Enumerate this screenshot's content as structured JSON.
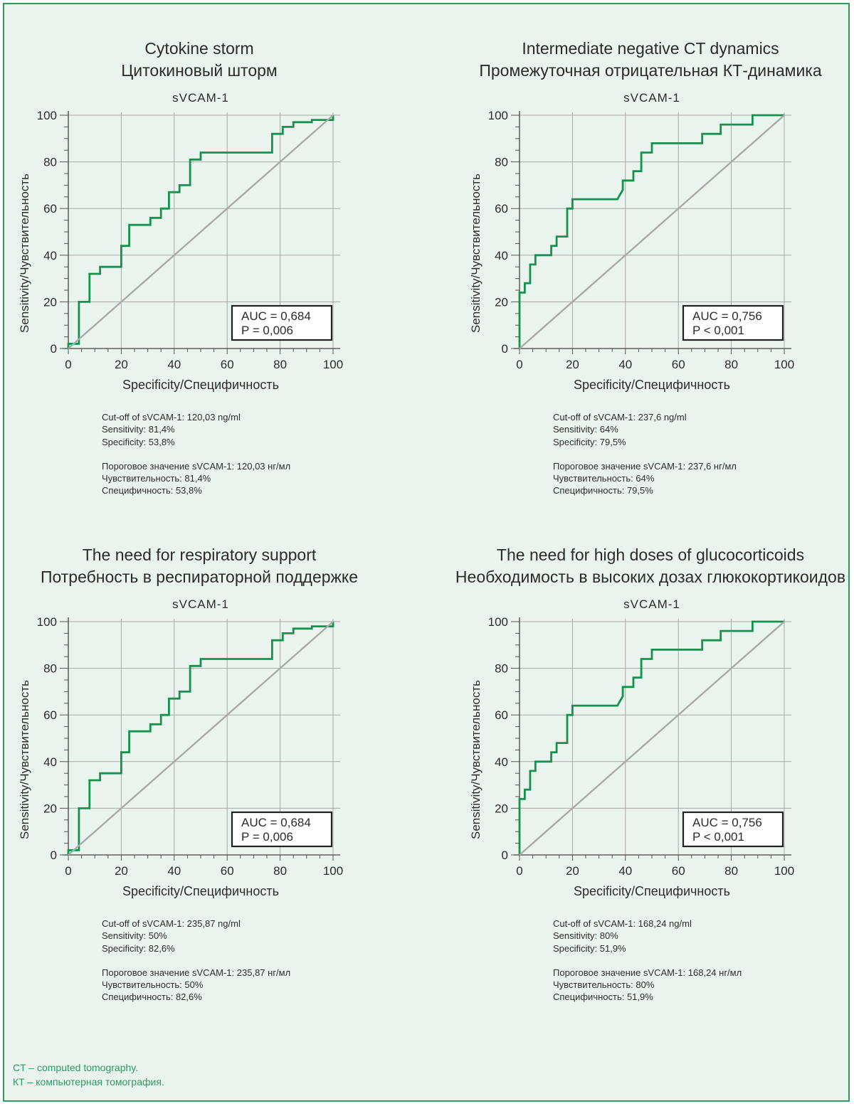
{
  "footnotes": [
    "CT – computed tomography.",
    "КТ – компьютерная томография."
  ],
  "colors": {
    "roc": "#17914f",
    "diagonal": "#a9a9a9",
    "grid": "#a8a8a8",
    "frame": "#2e9a5e",
    "background": "#eaf4ee"
  },
  "chart_data": [
    {
      "type": "line",
      "title_en": "Cytokine storm",
      "title_ru": "Цитокиновый шторм",
      "subtitle": "sVCAM-1",
      "xlabel": "Specificity/Специфичность",
      "ylabel": "Sensitivity/Чувствительность",
      "xlim": [
        0,
        100
      ],
      "ylim": [
        0,
        100
      ],
      "xticks": [
        0,
        20,
        40,
        60,
        80,
        100
      ],
      "yticks": [
        0,
        20,
        40,
        60,
        80,
        100
      ],
      "grid": true,
      "legend_box": [
        "AUC = 0,684",
        "P = 0,006"
      ],
      "legend_position": "bottom-right",
      "series": [
        {
          "role": "roc",
          "x": [
            0,
            0,
            4,
            4,
            4,
            8,
            8,
            12,
            12,
            20,
            20,
            23,
            23,
            31,
            31,
            35,
            35,
            38,
            38,
            42,
            42,
            46,
            46,
            50,
            50,
            77,
            77,
            81,
            81,
            85,
            85,
            92,
            92,
            100,
            100
          ],
          "y": [
            0,
            2,
            2,
            11,
            20,
            20,
            32,
            32,
            35,
            35,
            44,
            44,
            53,
            53,
            56,
            56,
            60,
            60,
            67,
            67,
            70,
            70,
            81,
            81,
            84,
            84,
            92,
            92,
            95,
            95,
            97,
            97,
            98,
            98,
            100
          ]
        },
        {
          "role": "reference",
          "x": [
            0,
            100
          ],
          "y": [
            0,
            100
          ]
        }
      ],
      "notes_en": [
        "Cut-off of sVCAM-1: 120,03 ng/ml",
        "Sensitivity: 81,4%",
        "Specificity: 53,8%"
      ],
      "notes_ru": [
        "Пороговое значение sVCAM-1: 120,03 нг/мл",
        "Чувствительность: 81,4%",
        "Специфичность: 53,8%"
      ]
    },
    {
      "type": "line",
      "title_en": "Intermediate negative CT dynamics",
      "title_ru": "Промежуточная отрицательная КТ-динамика",
      "subtitle": "sVCAM-1",
      "xlabel": "Specificity/Специфичность",
      "ylabel": "Sensitivity/Чувствительность",
      "xlim": [
        0,
        100
      ],
      "ylim": [
        0,
        100
      ],
      "xticks": [
        0,
        20,
        40,
        60,
        80,
        100
      ],
      "yticks": [
        0,
        20,
        40,
        60,
        80,
        100
      ],
      "grid": true,
      "legend_box": [
        "AUC = 0,756",
        "P < 0,001"
      ],
      "legend_position": "bottom-right",
      "series": [
        {
          "role": "roc",
          "x": [
            0,
            0,
            2,
            2,
            4,
            4,
            6,
            6,
            8,
            8,
            12,
            12,
            14,
            14,
            18,
            18,
            20,
            20,
            37,
            39,
            39,
            43,
            43,
            46,
            46,
            50,
            50,
            69,
            69,
            76,
            76,
            88,
            88,
            100
          ],
          "y": [
            0,
            24,
            24,
            28,
            28,
            36,
            36,
            40,
            40,
            40,
            40,
            44,
            44,
            48,
            48,
            60,
            60,
            64,
            64,
            68,
            72,
            72,
            76,
            76,
            84,
            84,
            88,
            88,
            92,
            92,
            96,
            96,
            100,
            100
          ]
        },
        {
          "role": "reference",
          "x": [
            0,
            100
          ],
          "y": [
            0,
            100
          ]
        }
      ],
      "notes_en": [
        "Cut-off of sVCAM-1: 237,6 ng/ml",
        "Sensitivity: 64%",
        "Specificity: 79,5%"
      ],
      "notes_ru": [
        "Пороговое значение sVCAM-1: 237,6 нг/мл",
        "Чувствительность: 64%",
        "Специфичность: 79,5%"
      ]
    },
    {
      "type": "line",
      "title_en": "The need for respiratory support",
      "title_ru": "Потребность в респираторной поддержке",
      "subtitle": "sVCAM-1",
      "xlabel": "Specificity/Специфичность",
      "ylabel": "Sensitivity/Чувствительность",
      "xlim": [
        0,
        100
      ],
      "ylim": [
        0,
        100
      ],
      "xticks": [
        0,
        20,
        40,
        60,
        80,
        100
      ],
      "yticks": [
        0,
        20,
        40,
        60,
        80,
        100
      ],
      "grid": true,
      "legend_box": [
        "AUC = 0,684",
        "P = 0,006"
      ],
      "legend_position": "bottom-right",
      "series": [
        {
          "role": "roc",
          "x": [
            0,
            0,
            4,
            4,
            4,
            8,
            8,
            12,
            12,
            20,
            20,
            23,
            23,
            31,
            31,
            35,
            35,
            38,
            38,
            42,
            42,
            46,
            46,
            50,
            50,
            77,
            77,
            81,
            81,
            85,
            85,
            92,
            92,
            100,
            100
          ],
          "y": [
            0,
            2,
            2,
            11,
            20,
            20,
            32,
            32,
            35,
            35,
            44,
            44,
            53,
            53,
            56,
            56,
            60,
            60,
            67,
            67,
            70,
            70,
            81,
            81,
            84,
            84,
            92,
            92,
            95,
            95,
            97,
            97,
            98,
            98,
            100
          ]
        },
        {
          "role": "reference",
          "x": [
            0,
            100
          ],
          "y": [
            0,
            100
          ]
        }
      ],
      "notes_en": [
        "Cut-off  of sVCAM-1: 235,87 ng/ml",
        "Sensitivity: 50%",
        "Specificity: 82,6%"
      ],
      "notes_ru": [
        "Пороговое значение sVCAM-1: 235,87 нг/мл",
        "Чувствительность: 50%",
        "Специфичность: 82,6%"
      ]
    },
    {
      "type": "line",
      "title_en": "The need for high doses of glucocorticoids",
      "title_ru": "Необходимость в высоких дозах глюкокортикоидов",
      "subtitle": "sVCAM-1",
      "xlabel": "Specificity/Специфичность",
      "ylabel": "Sensitivity/Чувствительность",
      "xlim": [
        0,
        100
      ],
      "ylim": [
        0,
        100
      ],
      "xticks": [
        0,
        20,
        40,
        60,
        80,
        100
      ],
      "yticks": [
        0,
        20,
        40,
        60,
        80,
        100
      ],
      "grid": true,
      "legend_box": [
        "AUC = 0,756",
        "P < 0,001"
      ],
      "legend_position": "bottom-right",
      "series": [
        {
          "role": "roc",
          "x": [
            0,
            0,
            2,
            2,
            4,
            4,
            6,
            6,
            8,
            8,
            12,
            12,
            14,
            14,
            18,
            18,
            20,
            20,
            37,
            39,
            39,
            43,
            43,
            46,
            46,
            50,
            50,
            69,
            69,
            76,
            76,
            88,
            88,
            100
          ],
          "y": [
            0,
            24,
            24,
            28,
            28,
            36,
            36,
            40,
            40,
            40,
            40,
            44,
            44,
            48,
            48,
            60,
            60,
            64,
            64,
            68,
            72,
            72,
            76,
            76,
            84,
            84,
            88,
            88,
            92,
            92,
            96,
            96,
            100,
            100
          ]
        },
        {
          "role": "reference",
          "x": [
            0,
            100
          ],
          "y": [
            0,
            100
          ]
        }
      ],
      "notes_en": [
        "Cut-off of sVCAM-1: 168,24 ng/ml",
        "Sensitivity: 80%",
        "Specificity: 51,9%"
      ],
      "notes_ru": [
        "Пороговое значение sVCAM-1: 168,24 нг/мл",
        "Чувствительность: 80%",
        "Специфичность: 51,9%"
      ]
    }
  ]
}
